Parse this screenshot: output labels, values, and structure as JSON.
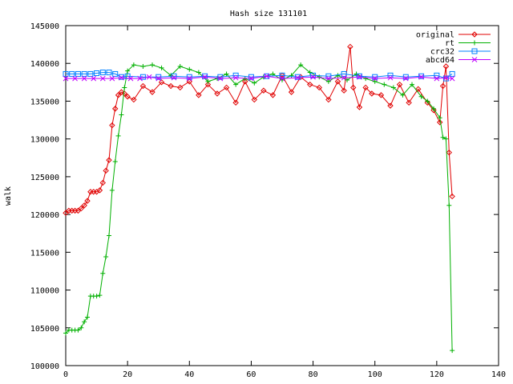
{
  "chart_data": {
    "type": "line",
    "title": "Hash size 131101",
    "xlabel": "",
    "ylabel": "walk",
    "xlim": [
      0,
      140
    ],
    "ylim": [
      100000,
      145000
    ],
    "x_ticks": [
      0,
      20,
      40,
      60,
      80,
      100,
      120,
      140
    ],
    "y_ticks": [
      100000,
      105000,
      110000,
      115000,
      120000,
      125000,
      130000,
      135000,
      140000,
      145000
    ],
    "x_tick_labels": [
      "0",
      "20",
      "40",
      "60",
      "80",
      "100",
      "120",
      "140"
    ],
    "y_tick_labels": [
      "100000",
      "105000",
      "110000",
      "115000",
      "120000",
      "125000",
      "130000",
      "135000",
      "140000",
      "145000"
    ],
    "grid": false,
    "legend_position": "top-right",
    "series": [
      {
        "name": "original",
        "color": "#e00000",
        "marker": "diamond",
        "x": [
          0,
          1,
          2,
          3,
          4,
          5,
          6,
          7,
          8,
          9,
          10,
          11,
          12,
          13,
          14,
          15,
          16,
          17,
          18,
          19,
          20,
          22,
          25,
          28,
          31,
          34,
          37,
          40,
          43,
          46,
          49,
          52,
          55,
          58,
          61,
          64,
          67,
          70,
          73,
          76,
          79,
          82,
          85,
          88,
          90,
          92,
          93,
          95,
          97,
          99,
          102,
          105,
          108,
          111,
          114,
          117,
          119,
          121,
          122,
          123,
          124,
          125
        ],
        "y": [
          120200,
          120500,
          120500,
          120500,
          120500,
          120800,
          121200,
          121800,
          123000,
          123000,
          123000,
          123200,
          124200,
          125800,
          127200,
          131800,
          134000,
          135800,
          136200,
          136000,
          135600,
          135200,
          137000,
          136200,
          137500,
          137000,
          136800,
          137600,
          135800,
          137200,
          136000,
          136800,
          134800,
          137600,
          135200,
          136400,
          135800,
          138400,
          136200,
          138200,
          137200,
          136800,
          135200,
          137600,
          136400,
          142200,
          136800,
          134200,
          136800,
          136000,
          135800,
          134400,
          137200,
          134800,
          136600,
          134800,
          133800,
          132200,
          137000,
          139600,
          128200,
          122400
        ]
      },
      {
        "name": "rt",
        "color": "#00b000",
        "marker": "plus",
        "x": [
          0,
          1,
          2,
          3,
          4,
          5,
          6,
          7,
          8,
          9,
          10,
          11,
          12,
          13,
          14,
          15,
          16,
          17,
          18,
          19,
          20,
          22,
          25,
          28,
          31,
          34,
          37,
          40,
          43,
          46,
          49,
          52,
          55,
          58,
          61,
          64,
          67,
          70,
          73,
          76,
          79,
          82,
          85,
          88,
          91,
          94,
          97,
          100,
          103,
          106,
          109,
          112,
          115,
          117,
          119,
          121,
          122,
          123,
          124,
          125
        ],
        "y": [
          104300,
          104700,
          104700,
          104700,
          104700,
          105000,
          105800,
          106400,
          109200,
          109200,
          109200,
          109300,
          112200,
          114400,
          117200,
          123200,
          127000,
          130400,
          133200,
          136800,
          139000,
          139800,
          139600,
          139800,
          139400,
          138400,
          139600,
          139200,
          138800,
          137600,
          138000,
          138600,
          137200,
          138000,
          137400,
          138200,
          138600,
          137800,
          138400,
          139800,
          138800,
          138200,
          137600,
          138400,
          137800,
          138600,
          138000,
          137600,
          137200,
          136800,
          135800,
          137200,
          135600,
          135000,
          134000,
          132800,
          130200,
          130000,
          121200,
          102000
        ]
      },
      {
        "name": "crc32",
        "color": "#0080ff",
        "marker": "square",
        "x": [
          0,
          2,
          4,
          6,
          8,
          10,
          12,
          14,
          16,
          18,
          20,
          25,
          30,
          35,
          40,
          45,
          50,
          55,
          60,
          65,
          70,
          75,
          80,
          85,
          90,
          95,
          100,
          105,
          110,
          115,
          120,
          123,
          125
        ],
        "y": [
          138600,
          138600,
          138600,
          138600,
          138600,
          138700,
          138800,
          138800,
          138600,
          138200,
          138300,
          138200,
          138200,
          138300,
          138200,
          138300,
          138200,
          138400,
          138200,
          138300,
          138400,
          138200,
          138400,
          138300,
          138600,
          138300,
          138200,
          138400,
          138200,
          138300,
          138400,
          138000,
          138600
        ]
      },
      {
        "name": "abcd64",
        "color": "#c000ff",
        "marker": "x",
        "x": [
          0,
          3,
          6,
          9,
          12,
          15,
          18,
          21,
          24,
          27,
          30,
          35,
          40,
          45,
          50,
          55,
          60,
          65,
          70,
          75,
          80,
          85,
          90,
          95,
          100,
          105,
          110,
          115,
          120,
          123,
          125
        ],
        "y": [
          138000,
          138000,
          138000,
          138000,
          138000,
          138000,
          138100,
          138000,
          138000,
          138200,
          138000,
          138100,
          138000,
          138200,
          138000,
          138100,
          138000,
          138300,
          138000,
          138100,
          138200,
          138000,
          138100,
          138200,
          138000,
          138100,
          138000,
          138200,
          138000,
          138100,
          138000
        ]
      }
    ]
  }
}
